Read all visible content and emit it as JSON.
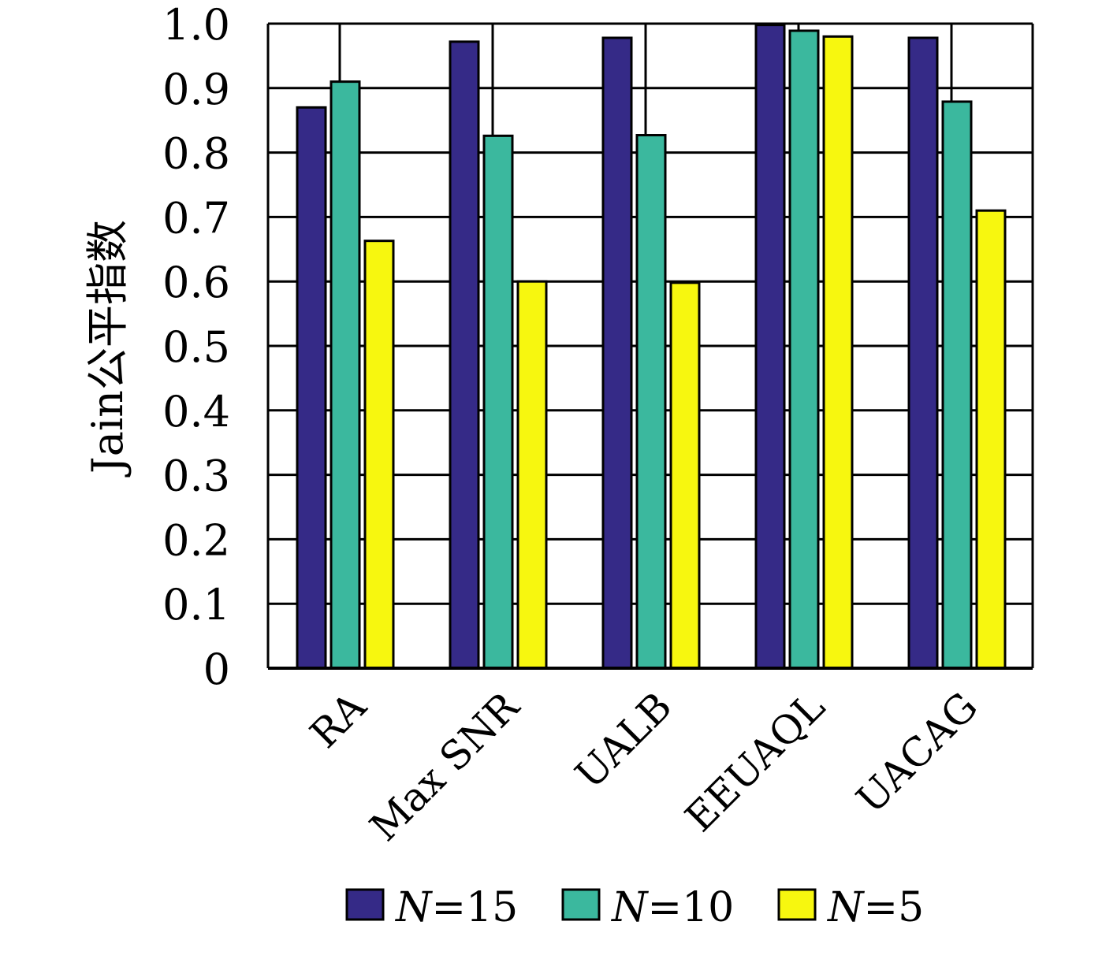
{
  "chart_data": {
    "type": "bar",
    "ylabel": "Jain公平指数",
    "ylim": [
      0,
      1.0
    ],
    "yticks": [
      "0",
      "0.1",
      "0.2",
      "0.3",
      "0.4",
      "0.5",
      "0.6",
      "0.7",
      "0.8",
      "0.9",
      "1.0"
    ],
    "grid": true,
    "legend_position": "bottom",
    "categories": [
      "RA",
      "Max SNR",
      "UALB",
      "EEUAQL",
      "UACAG"
    ],
    "series": [
      {
        "name": "N=15",
        "legend_var": "N",
        "legend_rest": "=15",
        "color": "#352a87",
        "values": [
          0.87,
          0.972,
          0.978,
          0.998,
          0.978
        ]
      },
      {
        "name": "N=10",
        "legend_var": "N",
        "legend_rest": "=10",
        "color": "#3bb89e",
        "values": [
          0.91,
          0.826,
          0.827,
          0.989,
          0.879
        ]
      },
      {
        "name": "N=5",
        "legend_var": "N",
        "legend_rest": "=5",
        "color": "#f7f70f",
        "values": [
          0.663,
          0.6,
          0.598,
          0.98,
          0.71
        ]
      }
    ]
  }
}
